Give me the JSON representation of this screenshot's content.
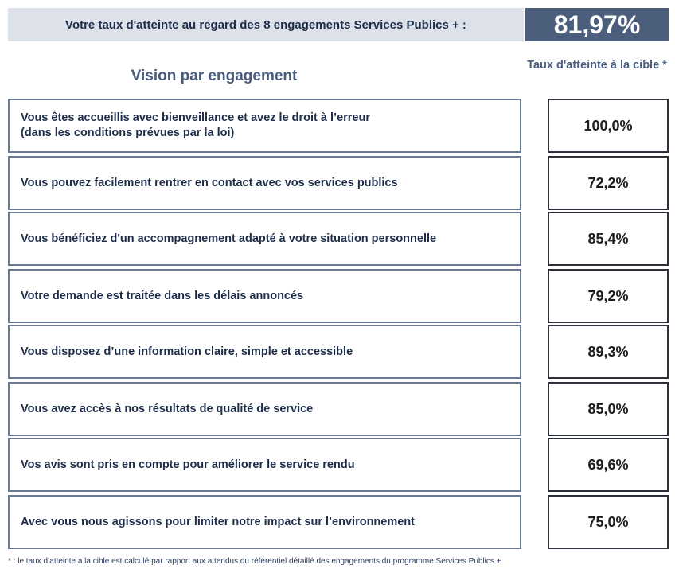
{
  "header": {
    "label": "Votre taux d'atteinte au regard des 8 engagements Services Publics + :",
    "value": "81,97%"
  },
  "section_title": "Vision par engagement",
  "column_header": "Taux d'atteinte à la cible *",
  "rows": [
    {
      "label": "Vous êtes accueillis avec bienveillance et avez le droit à l’erreur\n(dans les conditions prévues par la loi)",
      "value": "100,0%"
    },
    {
      "label": "Vous pouvez facilement rentrer en contact avec vos services publics",
      "value": "72,2%"
    },
    {
      "label": "Vous bénéficiez d'un accompagnement adapté à votre situation personnelle",
      "value": "85,4%"
    },
    {
      "label": "Votre demande est traitée dans les délais annoncés",
      "value": "79,2%"
    },
    {
      "label": "Vous disposez d’une information claire, simple et accessible",
      "value": "89,3%"
    },
    {
      "label": "Vous avez accès à nos résultats de qualité de service",
      "value": "85,0%"
    },
    {
      "label": "Vos avis sont pris en compte pour améliorer le service rendu",
      "value": "69,6%"
    },
    {
      "label": "Avec vous nous agissons pour limiter notre impact sur l’environnement",
      "value": "75,0%"
    }
  ],
  "footnote": "* : le taux d’atteinte à la cible est calculé par rapport aux attendus du référentiel détaillé des engagements du programme Services Publics +"
}
